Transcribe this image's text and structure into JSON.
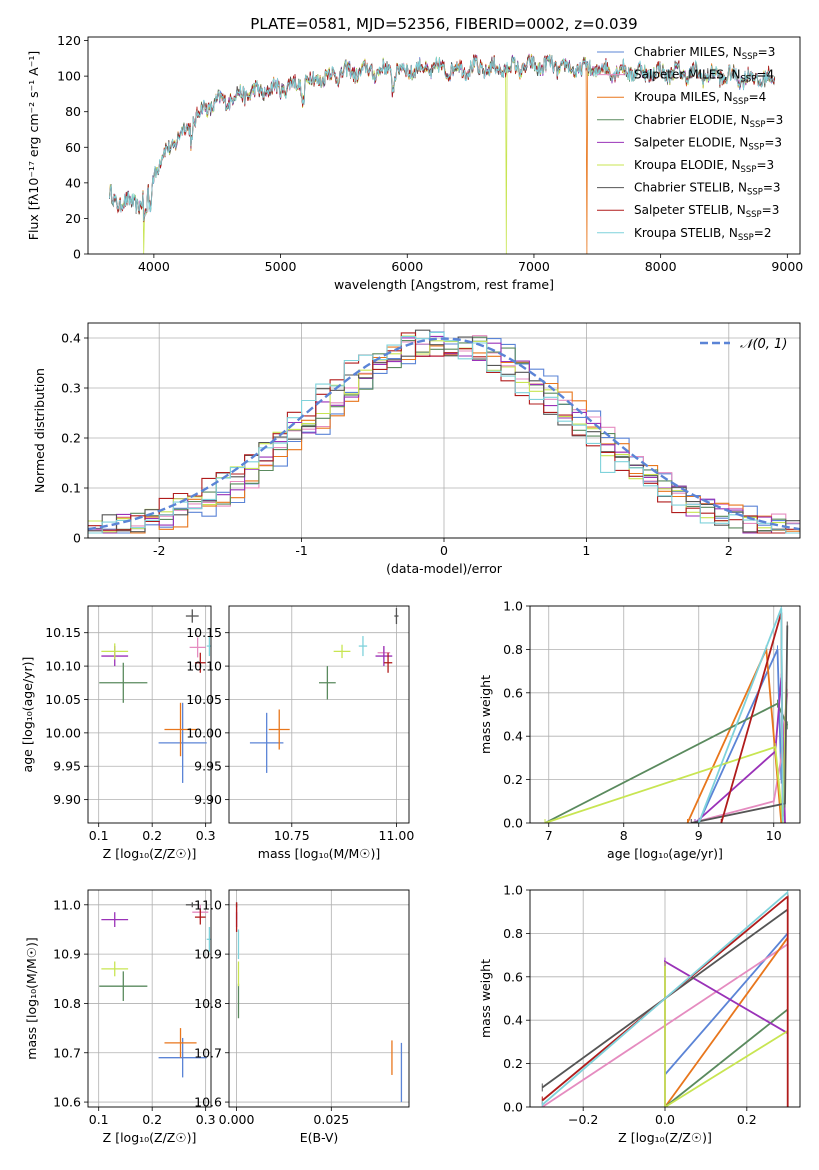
{
  "title": "PLATE=0581, MJD=52356, FIBERID=0002, z=0.039",
  "colors": {
    "chabrier_miles": "#5b84d6",
    "salpeter_miles": "#e58cc0",
    "kroupa_miles": "#e8761c",
    "chabrier_elodie": "#5a8a5e",
    "salpeter_elodie": "#9a32b8",
    "kroupa_elodie": "#c8e552",
    "chabrier_stelib": "#555555",
    "salpeter_stelib": "#b01c1c",
    "kroupa_stelib": "#7fd2db",
    "gauss": "#5b84d6"
  },
  "chart_data": [
    {
      "type": "line",
      "id": "spectrum",
      "xlabel": "wavelength [Angstrom, rest frame]",
      "ylabel": "Flux [fλ10⁻¹⁷ erg cm⁻² s⁻¹ A⁻¹]",
      "xlim": [
        3480,
        9100
      ],
      "ylim": [
        0,
        122
      ],
      "xticks": [
        4000,
        5000,
        6000,
        7000,
        8000,
        9000
      ],
      "yticks": [
        0,
        20,
        40,
        60,
        80,
        100,
        120
      ],
      "continuum": {
        "x": [
          3650,
          3700,
          3800,
          3850,
          3900,
          3950,
          4000,
          4100,
          4200,
          4300,
          4400,
          4500,
          4700,
          4900,
          5100,
          5300,
          5500,
          5700,
          5900,
          6100,
          6300,
          6500,
          6700,
          6900,
          7100,
          7300,
          7500,
          7700,
          7900,
          8100,
          8300,
          8500,
          8700,
          8900
        ],
        "y": [
          33,
          30,
          28,
          30,
          28,
          34,
          46,
          58,
          66,
          74,
          82,
          85,
          90,
          92,
          95,
          99,
          102,
          103,
          103,
          104,
          104,
          105,
          104,
          105,
          106,
          104,
          104,
          103,
          102,
          102,
          101,
          100,
          99,
          98
        ]
      },
      "drops": [
        {
          "series": 5,
          "x": 3920,
          "to": 0
        },
        {
          "series": 5,
          "x": 6780,
          "to": 0
        },
        {
          "series": 2,
          "x": 7420,
          "to": 0
        }
      ],
      "legend_position": "upper right",
      "series": [
        {
          "name": "Chabrier MILES, N",
          "sub": "SSP",
          "suffix": "=3"
        },
        {
          "name": "Salpeter MILES, N",
          "sub": "SSP",
          "suffix": "=4"
        },
        {
          "name": "Kroupa MILES, N",
          "sub": "SSP",
          "suffix": "=4"
        },
        {
          "name": "Chabrier ELODIE, N",
          "sub": "SSP",
          "suffix": "=3"
        },
        {
          "name": "Salpeter ELODIE, N",
          "sub": "SSP",
          "suffix": "=3"
        },
        {
          "name": "Kroupa ELODIE, N",
          "sub": "SSP",
          "suffix": "=3"
        },
        {
          "name": "Chabrier STELIB, N",
          "sub": "SSP",
          "suffix": "=3"
        },
        {
          "name": "Salpeter STELIB, N",
          "sub": "SSP",
          "suffix": "=3"
        },
        {
          "name": "Kroupa STELIB, N",
          "sub": "SSP",
          "suffix": "=2"
        }
      ]
    },
    {
      "type": "histogram",
      "id": "residuals",
      "xlabel": "(data-model)/error",
      "ylabel": "Normed distribution",
      "xlim": [
        -2.5,
        2.5
      ],
      "ylim": [
        0,
        0.43
      ],
      "xticks": [
        -2,
        -1,
        0,
        1,
        2
      ],
      "yticks": [
        0,
        0.1,
        0.2,
        0.3,
        0.4
      ],
      "grid": true,
      "bin_width": 0.1,
      "gauss_label": "𝒩(0, 1)",
      "legend_position": "upper right"
    },
    {
      "type": "errorbar",
      "id": "age_vs_Z",
      "xlabel": "Z [log₁₀(Z/Z☉)]",
      "ylabel": "age  [log₁₀(age/yr)]",
      "xlim": [
        0.08,
        0.31
      ],
      "ylim": [
        9.865,
        10.19
      ],
      "xticks": [
        0.1,
        0.2,
        0.3
      ],
      "xticklabels": [
        "0.1",
        "0.2",
        "0.3"
      ],
      "yticks": [
        9.9,
        9.95,
        10.0,
        10.05,
        10.1,
        10.15
      ],
      "yticklabels": [
        "9.90",
        "9.95",
        "10.00",
        "10.05",
        "10.10",
        "10.15"
      ],
      "points": [
        {
          "s": 0,
          "x": 0.257,
          "xe": 0.045,
          "y": 9.985,
          "ye": 0.06
        },
        {
          "s": 1,
          "x": 0.285,
          "xe": 0.015,
          "y": 10.128,
          "ye": 0.015
        },
        {
          "s": 2,
          "x": 0.253,
          "xe": 0.03,
          "y": 10.005,
          "ye": 0.04
        },
        {
          "s": 3,
          "x": 0.146,
          "xe": 0.045,
          "y": 10.075,
          "ye": 0.03
        },
        {
          "s": 4,
          "x": 0.13,
          "xe": 0.025,
          "y": 10.115,
          "ye": 0.015
        },
        {
          "s": 5,
          "x": 0.13,
          "xe": 0.025,
          "y": 10.122,
          "ye": 0.012
        },
        {
          "s": 6,
          "x": 0.275,
          "xe": 0.012,
          "y": 10.175,
          "ye": 0.01
        },
        {
          "s": 7,
          "x": 0.29,
          "xe": 0.01,
          "y": 10.105,
          "ye": 0.015
        },
        {
          "s": 8,
          "x": 0.307,
          "xe": 0.005,
          "y": 10.13,
          "ye": 0.015
        }
      ]
    },
    {
      "type": "errorbar",
      "id": "age_vs_mass",
      "xlabel": "mass [log₁₀(M/M☉)]",
      "ylabel": "",
      "xlim": [
        10.6,
        11.03
      ],
      "ylim": [
        9.865,
        10.19
      ],
      "xticks": [
        10.75,
        11.0
      ],
      "xticklabels": [
        "10.75",
        "11.00"
      ],
      "yticks": [
        9.9,
        9.95,
        10.0,
        10.05,
        10.1,
        10.15
      ],
      "yticklabels": [
        "9.90",
        "9.95",
        "10.00",
        "10.05",
        "10.10",
        "10.15"
      ],
      "points": [
        {
          "s": 0,
          "x": 10.69,
          "xe": 0.04,
          "y": 9.985,
          "ye": 0.045
        },
        {
          "s": 1,
          "x": 10.97,
          "xe": 0.015,
          "y": 10.12,
          "ye": 0.01
        },
        {
          "s": 2,
          "x": 10.72,
          "xe": 0.025,
          "y": 10.005,
          "ye": 0.03
        },
        {
          "s": 3,
          "x": 10.835,
          "xe": 0.02,
          "y": 10.075,
          "ye": 0.025
        },
        {
          "s": 4,
          "x": 10.97,
          "xe": 0.02,
          "y": 10.115,
          "ye": 0.015
        },
        {
          "s": 5,
          "x": 10.87,
          "xe": 0.02,
          "y": 10.122,
          "ye": 0.01
        },
        {
          "s": 6,
          "x": 11.0,
          "xe": 0.005,
          "y": 10.175,
          "ye": 0.012
        },
        {
          "s": 7,
          "x": 10.98,
          "xe": 0.01,
          "y": 10.105,
          "ye": 0.015
        },
        {
          "s": 8,
          "x": 10.92,
          "xe": 0.01,
          "y": 10.13,
          "ye": 0.015
        }
      ]
    },
    {
      "type": "line",
      "id": "weight_vs_age",
      "xlabel": "age  [log₁₀(age/yr)]",
      "ylabel": "mass weight",
      "xlim": [
        6.75,
        10.35
      ],
      "ylim": [
        0,
        1.0
      ],
      "xticks": [
        7,
        8,
        9,
        10
      ],
      "xticklabels": [
        "7",
        "8",
        "9",
        "10"
      ],
      "yticks": [
        0,
        0.2,
        0.4,
        0.6,
        0.8,
        1.0
      ],
      "yticklabels": [
        "0.0",
        "0.2",
        "0.4",
        "0.6",
        "0.8",
        "1.0"
      ],
      "series": [
        {
          "s": 0,
          "x": [
            9.0,
            10.05,
            10.1
          ],
          "y": [
            0.0,
            0.8,
            0.2
          ]
        },
        {
          "s": 1,
          "x": [
            8.9,
            10.0,
            10.1,
            10.18
          ],
          "y": [
            0.0,
            0.1,
            0.3,
            0.6
          ]
        },
        {
          "s": 2,
          "x": [
            8.85,
            9.9,
            10.1,
            10.15
          ],
          "y": [
            0.0,
            0.8,
            0.0,
            0.2
          ]
        },
        {
          "s": 3,
          "x": [
            6.95,
            10.05,
            10.18
          ],
          "y": [
            0.0,
            0.55,
            0.45
          ]
        },
        {
          "s": 4,
          "x": [
            8.95,
            10.02,
            10.1,
            10.15
          ],
          "y": [
            0.0,
            0.33,
            0.67,
            0.0
          ]
        },
        {
          "s": 5,
          "x": [
            6.95,
            10.02,
            10.12,
            10.17
          ],
          "y": [
            0.0,
            0.35,
            0.0,
            0.65
          ]
        },
        {
          "s": 6,
          "x": [
            8.9,
            10.15,
            10.18
          ],
          "y": [
            0.0,
            0.09,
            0.91
          ]
        },
        {
          "s": 7,
          "x": [
            9.3,
            10.1,
            10.12
          ],
          "y": [
            0.0,
            0.97,
            0.03
          ]
        },
        {
          "s": 8,
          "x": [
            9.0,
            10.1,
            10.12
          ],
          "y": [
            0.0,
            0.99,
            0.01
          ]
        }
      ]
    },
    {
      "type": "errorbar",
      "id": "mass_vs_Z",
      "xlabel": "Z [log₁₀(Z/Z☉)]",
      "ylabel": "mass [log₁₀(M/M☉)]",
      "xlim": [
        0.08,
        0.31
      ],
      "ylim": [
        10.59,
        11.03
      ],
      "xticks": [
        0.1,
        0.2,
        0.3
      ],
      "xticklabels": [
        "0.1",
        "0.2",
        "0.3"
      ],
      "yticks": [
        10.6,
        10.7,
        10.8,
        10.9,
        11.0
      ],
      "yticklabels": [
        "10.6",
        "10.7",
        "10.8",
        "10.9",
        "11.0"
      ],
      "points": [
        {
          "s": 0,
          "x": 0.257,
          "xe": 0.045,
          "y": 10.69,
          "ye": 0.04
        },
        {
          "s": 1,
          "x": 0.29,
          "xe": 0.015,
          "y": 10.985,
          "ye": 0.015
        },
        {
          "s": 2,
          "x": 0.253,
          "xe": 0.03,
          "y": 10.72,
          "ye": 0.03
        },
        {
          "s": 3,
          "x": 0.146,
          "xe": 0.045,
          "y": 10.835,
          "ye": 0.03
        },
        {
          "s": 4,
          "x": 0.13,
          "xe": 0.025,
          "y": 10.97,
          "ye": 0.015
        },
        {
          "s": 5,
          "x": 0.13,
          "xe": 0.025,
          "y": 10.87,
          "ye": 0.015
        },
        {
          "s": 6,
          "x": 0.275,
          "xe": 0.012,
          "y": 11.0,
          "ye": 0.005
        },
        {
          "s": 7,
          "x": 0.29,
          "xe": 0.01,
          "y": 10.975,
          "ye": 0.015
        },
        {
          "s": 8,
          "x": 0.307,
          "xe": 0.005,
          "y": 10.93,
          "ye": 0.025
        }
      ]
    },
    {
      "type": "errorbar",
      "id": "mass_vs_ebv",
      "xlabel": "E(B-V)",
      "ylabel": "",
      "xlim": [
        -0.002,
        0.0455
      ],
      "ylim": [
        10.59,
        11.03
      ],
      "xticks": [
        0.0,
        0.025
      ],
      "xticklabels": [
        "0.000",
        "0.025"
      ],
      "yticks": [
        10.6,
        10.7,
        10.8,
        10.9,
        11.0
      ],
      "yticklabels": [
        "10.6",
        "10.7",
        "10.8",
        "10.9",
        "11.0"
      ],
      "points": [
        {
          "s": 0,
          "x": 0.0435,
          "xe": 0.0,
          "y": 10.66,
          "ye": 0.06
        },
        {
          "s": 1,
          "x": 0.0,
          "xe": 0.0,
          "y": 10.985,
          "ye": 0.015
        },
        {
          "s": 2,
          "x": 0.041,
          "xe": 0.0,
          "y": 10.69,
          "ye": 0.035
        },
        {
          "s": 3,
          "x": 0.0005,
          "xe": 0.0,
          "y": 10.805,
          "ye": 0.035
        },
        {
          "s": 4,
          "x": 0.0,
          "xe": 0.0,
          "y": 10.97,
          "ye": 0.015
        },
        {
          "s": 5,
          "x": 0.0005,
          "xe": 0.0,
          "y": 10.86,
          "ye": 0.025
        },
        {
          "s": 6,
          "x": 0.0,
          "xe": 0.0,
          "y": 11.0,
          "ye": 0.005
        },
        {
          "s": 7,
          "x": 0.0,
          "xe": 0.0,
          "y": 10.975,
          "ye": 0.03
        },
        {
          "s": 8,
          "x": 0.0005,
          "xe": 0.0,
          "y": 10.92,
          "ye": 0.03
        }
      ]
    },
    {
      "type": "line",
      "id": "weight_vs_Z",
      "xlabel": "Z [log₁₀(Z/Z☉)]",
      "ylabel": "mass weight",
      "xlim": [
        -0.33,
        0.33
      ],
      "ylim": [
        0,
        1.0
      ],
      "xticks": [
        -0.2,
        0.0,
        0.2
      ],
      "xticklabels": [
        "−0.2",
        "0.0",
        "0.2"
      ],
      "yticks": [
        0,
        0.2,
        0.4,
        0.6,
        0.8,
        1.0
      ],
      "yticklabels": [
        "0.0",
        "0.2",
        "0.4",
        "0.6",
        "0.8",
        "1.0"
      ],
      "series": [
        {
          "s": 0,
          "x": [
            0.0,
            0.3
          ],
          "y": [
            0.15,
            0.8
          ]
        },
        {
          "s": 1,
          "x": [
            -0.3,
            0.3
          ],
          "y": [
            0.0,
            0.75
          ]
        },
        {
          "s": 2,
          "x": [
            0.0,
            0.3
          ],
          "y": [
            0.0,
            0.78
          ]
        },
        {
          "s": 3,
          "x": [
            0.0,
            0.3
          ],
          "y": [
            0.0,
            0.45
          ]
        },
        {
          "s": 4,
          "x": [
            0.0,
            0.0,
            0.3
          ],
          "y": [
            0.0,
            0.67,
            0.34
          ]
        },
        {
          "s": 5,
          "x": [
            0.0,
            0.0,
            0.3
          ],
          "y": [
            0.65,
            0.0,
            0.35
          ]
        },
        {
          "s": 6,
          "x": [
            -0.3,
            0.3
          ],
          "y": [
            0.09,
            0.91
          ]
        },
        {
          "s": 7,
          "x": [
            -0.3,
            0.3,
            0.3
          ],
          "y": [
            0.03,
            0.97,
            0.0
          ]
        },
        {
          "s": 8,
          "x": [
            -0.3,
            0.3
          ],
          "y": [
            0.01,
            0.99
          ]
        }
      ]
    }
  ]
}
